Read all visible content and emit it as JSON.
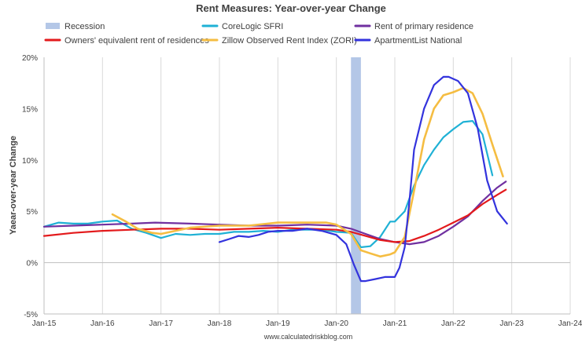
{
  "chart_data": {
    "type": "line",
    "title": "Rent Measures: Year-over-year Change",
    "ylabel": "Yaear-over-year Change",
    "xlabel": "",
    "source": "www.calculatedriskblog.com",
    "ylim": [
      -5,
      20
    ],
    "xlim": [
      2015.0,
      2024.0
    ],
    "y_ticks": [
      {
        "value": 20,
        "label": "20%"
      },
      {
        "value": 15,
        "label": "15%"
      },
      {
        "value": 10,
        "label": "10%"
      },
      {
        "value": 5,
        "label": "5%"
      },
      {
        "value": 0,
        "label": "0%"
      },
      {
        "value": -5,
        "label": "-5%"
      }
    ],
    "x_ticks": [
      {
        "value": 2015,
        "label": "Jan-15"
      },
      {
        "value": 2016,
        "label": "Jan-16"
      },
      {
        "value": 2017,
        "label": "Jan-17"
      },
      {
        "value": 2018,
        "label": "Jan-18"
      },
      {
        "value": 2019,
        "label": "Jan-19"
      },
      {
        "value": 2020,
        "label": "Jan-20"
      },
      {
        "value": 2021,
        "label": "Jan-21"
      },
      {
        "value": 2022,
        "label": "Jan-22"
      },
      {
        "value": 2023,
        "label": "Jan-23"
      },
      {
        "value": 2024,
        "label": "Jan-24"
      }
    ],
    "grid": "vertical",
    "legend_position": "top",
    "recession": {
      "name": "Recession",
      "start": 2020.25,
      "end": 2020.42,
      "color": "#b4c7e7"
    },
    "series": [
      {
        "name": "CoreLogic SFRI",
        "color": "#1fb1d5",
        "width": 2.2,
        "x": [
          2015.0,
          2015.25,
          2015.5,
          2015.75,
          2016.0,
          2016.25,
          2016.5,
          2016.75,
          2017.0,
          2017.25,
          2017.5,
          2017.75,
          2018.0,
          2018.25,
          2018.5,
          2018.75,
          2019.0,
          2019.25,
          2019.5,
          2019.75,
          2020.0,
          2020.25,
          2020.42,
          2020.58,
          2020.75,
          2020.92,
          2021.0,
          2021.17,
          2021.33,
          2021.5,
          2021.67,
          2021.83,
          2022.0,
          2022.17,
          2022.33,
          2022.5,
          2022.67
        ],
        "values": [
          3.5,
          3.9,
          3.8,
          3.8,
          4.0,
          4.1,
          3.3,
          2.9,
          2.4,
          2.8,
          2.7,
          2.8,
          2.8,
          3.0,
          3.0,
          3.1,
          3.0,
          3.2,
          3.2,
          3.2,
          3.0,
          2.9,
          1.5,
          1.6,
          2.5,
          4.0,
          4.0,
          5.0,
          7.5,
          9.5,
          11.0,
          12.2,
          13.0,
          13.7,
          13.8,
          12.5,
          8.5
        ]
      },
      {
        "name": "Rent of primary residence",
        "color": "#7030a0",
        "width": 2.2,
        "x": [
          2015.0,
          2015.5,
          2016.0,
          2016.5,
          2016.9,
          2017.5,
          2018.0,
          2018.5,
          2019.0,
          2019.5,
          2020.0,
          2020.25,
          2020.5,
          2020.75,
          2021.0,
          2021.25,
          2021.5,
          2021.75,
          2022.0,
          2022.25,
          2022.5,
          2022.75,
          2022.9
        ],
        "values": [
          3.5,
          3.6,
          3.7,
          3.8,
          3.9,
          3.8,
          3.7,
          3.6,
          3.6,
          3.7,
          3.6,
          3.3,
          2.8,
          2.3,
          2.0,
          1.8,
          2.0,
          2.6,
          3.5,
          4.5,
          6.0,
          7.3,
          7.9
        ]
      },
      {
        "name": "Owners' equivalent rent of residences",
        "color": "#e31a1c",
        "width": 2.2,
        "x": [
          2015.0,
          2015.5,
          2016.0,
          2016.5,
          2017.0,
          2017.5,
          2018.0,
          2018.5,
          2019.0,
          2019.5,
          2020.0,
          2020.25,
          2020.5,
          2020.75,
          2021.0,
          2021.25,
          2021.5,
          2021.75,
          2022.0,
          2022.25,
          2022.5,
          2022.75,
          2022.9
        ],
        "values": [
          2.6,
          2.9,
          3.1,
          3.2,
          3.3,
          3.3,
          3.2,
          3.3,
          3.4,
          3.3,
          3.2,
          3.0,
          2.6,
          2.2,
          2.0,
          2.1,
          2.6,
          3.2,
          3.9,
          4.6,
          5.7,
          6.6,
          7.1
        ]
      },
      {
        "name": "Zillow Observed Rent Index (ZORI)",
        "color": "#f5bd42",
        "width": 2.6,
        "x": [
          2016.17,
          2016.4,
          2016.6,
          2016.85,
          2017.0,
          2017.5,
          2018.0,
          2018.5,
          2019.0,
          2019.5,
          2019.83,
          2020.0,
          2020.25,
          2020.42,
          2020.58,
          2020.75,
          2020.92,
          2021.0,
          2021.17,
          2021.33,
          2021.5,
          2021.67,
          2021.83,
          2022.0,
          2022.17,
          2022.33,
          2022.5,
          2022.67,
          2022.85
        ],
        "values": [
          4.7,
          4.0,
          3.3,
          2.9,
          2.8,
          3.4,
          3.6,
          3.6,
          3.9,
          3.9,
          3.9,
          3.7,
          2.8,
          1.2,
          0.9,
          0.6,
          0.8,
          1.0,
          2.5,
          7.0,
          12.0,
          15.0,
          16.3,
          16.6,
          17.0,
          16.5,
          14.5,
          11.5,
          8.4
        ]
      },
      {
        "name": "ApartmentList National",
        "color": "#3333dd",
        "width": 2.2,
        "x": [
          2018.0,
          2018.17,
          2018.33,
          2018.5,
          2018.67,
          2018.83,
          2019.0,
          2019.25,
          2019.5,
          2019.75,
          2020.0,
          2020.17,
          2020.3,
          2020.42,
          2020.5,
          2020.67,
          2020.83,
          2021.0,
          2021.08,
          2021.17,
          2021.25,
          2021.33,
          2021.5,
          2021.67,
          2021.83,
          2021.92,
          2022.08,
          2022.25,
          2022.42,
          2022.58,
          2022.75,
          2022.92
        ],
        "values": [
          2.0,
          2.3,
          2.6,
          2.5,
          2.7,
          3.0,
          3.1,
          3.1,
          3.3,
          3.1,
          2.7,
          1.8,
          -0.2,
          -1.8,
          -1.8,
          -1.6,
          -1.4,
          -1.4,
          -0.5,
          1.5,
          6.0,
          11.0,
          15.0,
          17.3,
          18.1,
          18.1,
          17.7,
          16.5,
          13.0,
          8.0,
          5.0,
          3.8
        ]
      }
    ],
    "legend": [
      {
        "name": "Recession",
        "color": "#b4c7e7"
      },
      {
        "name": "CoreLogic SFRI",
        "color": "#1fb1d5"
      },
      {
        "name": "Rent of primary residence",
        "color": "#7030a0"
      },
      {
        "name": "Owners' equivalent rent of residences",
        "color": "#e31a1c"
      },
      {
        "name": "Zillow Observed Rent Index (ZORI)",
        "color": "#f5bd42"
      },
      {
        "name": "ApartmentList National",
        "color": "#3333dd"
      }
    ]
  }
}
